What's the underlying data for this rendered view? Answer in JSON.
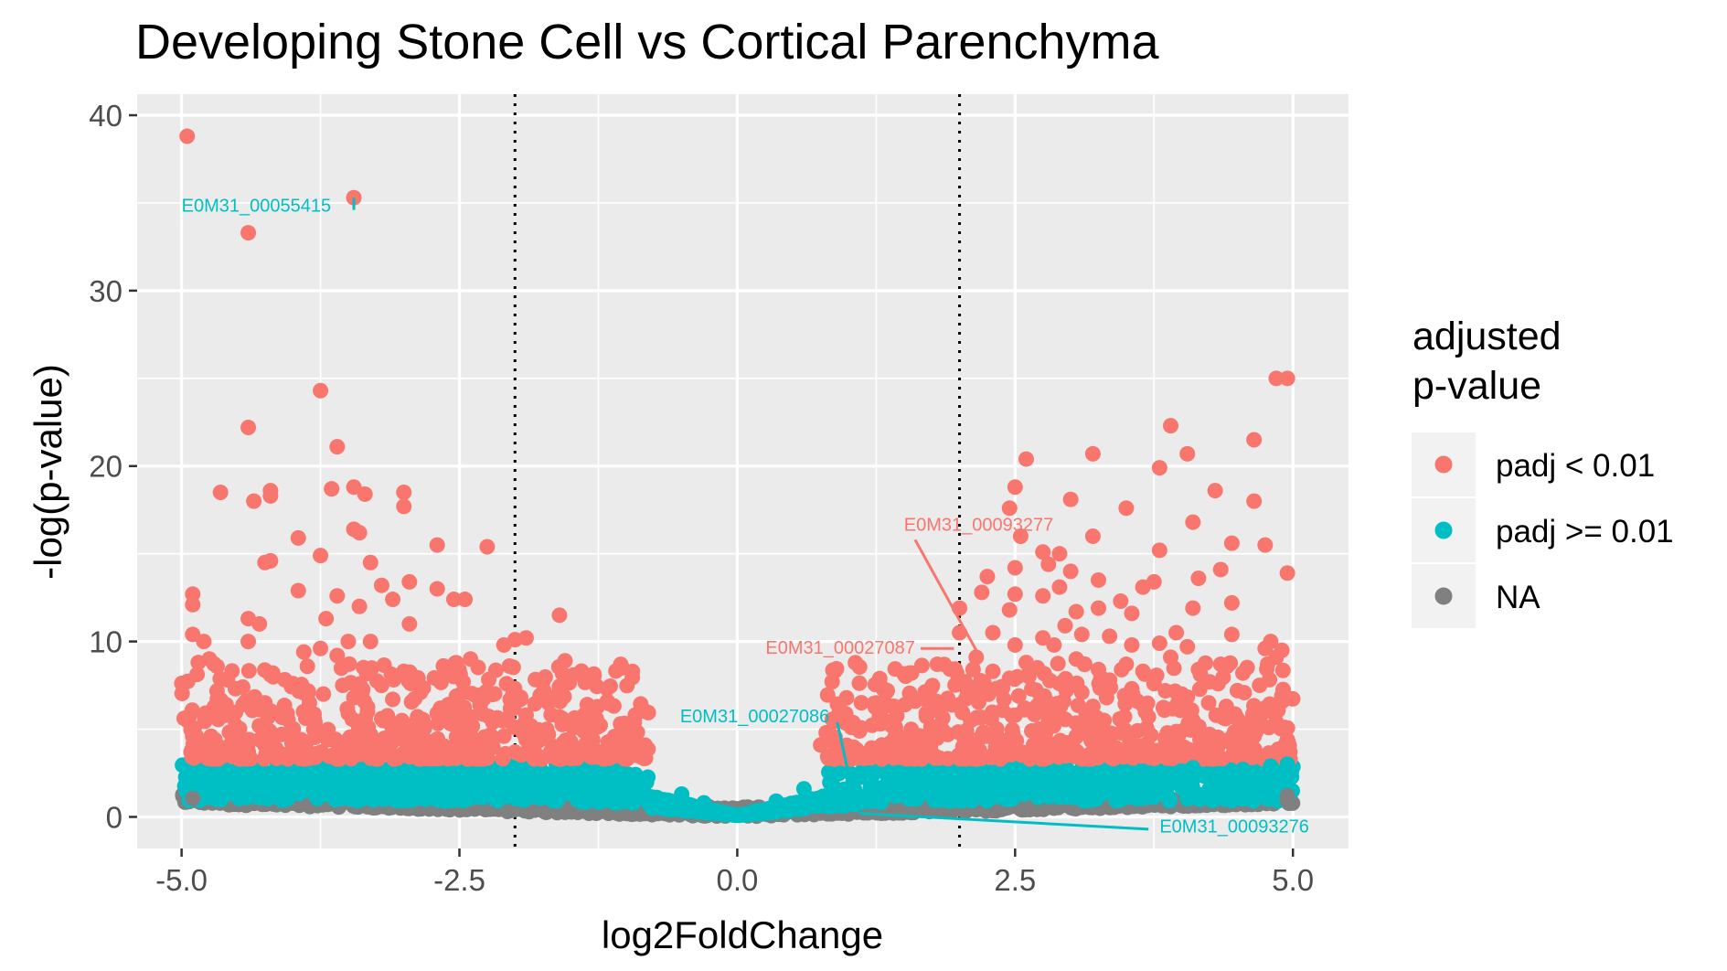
{
  "chart_data": {
    "type": "scatter",
    "title": "Developing Stone Cell vs Cortical Parenchyma",
    "xlabel": "log2FoldChange",
    "ylabel": "-log(p-value)",
    "xlim": [
      -5.4,
      5.5
    ],
    "ylim": [
      -1.8,
      41.2
    ],
    "x_ticks": [
      -5.0,
      -2.5,
      0.0,
      2.5,
      5.0
    ],
    "x_tick_labels": [
      "-5.0",
      "-2.5",
      "0.0",
      "2.5",
      "5.0"
    ],
    "y_ticks": [
      0,
      10,
      20,
      30,
      40
    ],
    "y_tick_labels": [
      "0",
      "10",
      "20",
      "30",
      "40"
    ],
    "vlines": [
      -2,
      2
    ],
    "grid": true,
    "legend": {
      "title_lines": [
        "adjusted",
        "p-value"
      ],
      "position": "right",
      "entries": [
        {
          "label": "padj < 0.01",
          "color": "#F8766D"
        },
        {
          "label": "padj >= 0.01",
          "color": "#00BFC4"
        },
        {
          "label": "NA",
          "color": "#808080"
        }
      ]
    },
    "series": [
      {
        "name": "padj < 0.01",
        "color": "#F8766D",
        "points": [
          [
            -4.95,
            38.8
          ],
          [
            -3.45,
            35.3
          ],
          [
            -4.4,
            33.3
          ],
          [
            -3.75,
            24.3
          ],
          [
            -4.4,
            22.2
          ],
          [
            -3.6,
            21.1
          ],
          [
            -4.65,
            18.5
          ],
          [
            -4.2,
            18.6
          ],
          [
            -4.2,
            18.3
          ],
          [
            -3.45,
            18.8
          ],
          [
            -3.35,
            18.4
          ],
          [
            -3.65,
            18.7
          ],
          [
            -4.35,
            18.0
          ],
          [
            -3.0,
            18.5
          ],
          [
            -3.0,
            17.7
          ],
          [
            -3.45,
            16.4
          ],
          [
            -3.4,
            16.2
          ],
          [
            -3.95,
            15.9
          ],
          [
            -2.7,
            15.5
          ],
          [
            -2.25,
            15.4
          ],
          [
            -3.75,
            14.9
          ],
          [
            -4.2,
            14.6
          ],
          [
            -4.25,
            14.5
          ],
          [
            -3.3,
            14.5
          ],
          [
            -3.2,
            13.2
          ],
          [
            -2.95,
            13.4
          ],
          [
            -2.7,
            13.0
          ],
          [
            -3.95,
            12.9
          ],
          [
            -3.6,
            12.6
          ],
          [
            -2.55,
            12.4
          ],
          [
            -2.45,
            12.4
          ],
          [
            -4.9,
            12.7
          ],
          [
            -4.9,
            12.1
          ],
          [
            -3.1,
            12.4
          ],
          [
            -1.6,
            11.5
          ],
          [
            -3.4,
            12.0
          ],
          [
            -2.95,
            11.0
          ],
          [
            -4.4,
            11.3
          ],
          [
            -4.3,
            11.0
          ],
          [
            -4.4,
            10.0
          ],
          [
            -3.7,
            11.3
          ],
          [
            -4.9,
            10.4
          ],
          [
            -4.8,
            10.0
          ],
          [
            -3.5,
            10.0
          ],
          [
            -3.3,
            10.0
          ],
          [
            -2.0,
            10.1
          ],
          [
            -1.9,
            10.2
          ],
          [
            -2.1,
            9.8
          ],
          [
            -4.75,
            9.0
          ],
          [
            -3.9,
            9.4
          ],
          [
            -3.75,
            9.6
          ],
          [
            -3.6,
            9.2
          ],
          [
            -4.85,
            8.8
          ],
          [
            -2.4,
            9.0
          ],
          [
            -1.55,
            8.9
          ],
          [
            -2.05,
            8.6
          ],
          [
            -1.75,
            7.7
          ],
          [
            -4.45,
            7.4
          ],
          [
            -4.2,
            8.1
          ],
          [
            -4.0,
            7.6
          ],
          [
            -3.55,
            7.5
          ],
          [
            -3.0,
            8.3
          ],
          [
            -2.55,
            8.0
          ],
          [
            -2.25,
            7.0
          ],
          [
            -4.6,
            6.4
          ],
          [
            -4.25,
            6.5
          ],
          [
            -3.85,
            6.5
          ],
          [
            -3.45,
            6.8
          ],
          [
            -3.1,
            6.7
          ],
          [
            -2.85,
            7.1
          ],
          [
            -2.6,
            6.4
          ],
          [
            -2.35,
            6.9
          ],
          [
            -1.95,
            6.7
          ],
          [
            -1.7,
            6.5
          ],
          [
            -1.35,
            6.4
          ],
          [
            -4.95,
            5.5
          ],
          [
            -4.6,
            5.8
          ],
          [
            -4.3,
            5.2
          ],
          [
            -4.05,
            5.9
          ],
          [
            -3.8,
            5.4
          ],
          [
            -3.5,
            5.9
          ],
          [
            -3.2,
            5.6
          ],
          [
            -2.9,
            5.3
          ],
          [
            -2.7,
            5.9
          ],
          [
            -2.45,
            5.7
          ],
          [
            -2.2,
            5.4
          ],
          [
            -1.9,
            5.8
          ],
          [
            -1.6,
            5.7
          ],
          [
            -1.3,
            5.4
          ],
          [
            -1.05,
            5.3
          ],
          [
            -4.9,
            4.6
          ],
          [
            -4.7,
            4.4
          ],
          [
            -4.5,
            4.8
          ],
          [
            -4.3,
            4.4
          ],
          [
            -4.1,
            4.7
          ],
          [
            -3.9,
            4.3
          ],
          [
            -3.7,
            4.8
          ],
          [
            -3.5,
            4.4
          ],
          [
            -3.3,
            4.7
          ],
          [
            -3.1,
            4.3
          ],
          [
            -2.9,
            4.8
          ],
          [
            -2.7,
            4.4
          ],
          [
            -2.5,
            4.7
          ],
          [
            -2.3,
            4.3
          ],
          [
            -2.1,
            4.6
          ],
          [
            -1.9,
            4.4
          ],
          [
            -1.7,
            4.7
          ],
          [
            -1.5,
            4.3
          ],
          [
            -1.3,
            4.4
          ],
          [
            -1.1,
            4.2
          ],
          [
            -0.95,
            4.1
          ],
          [
            -0.85,
            3.9
          ],
          [
            -4.8,
            3.6
          ],
          [
            -4.4,
            3.7
          ],
          [
            -4.0,
            3.6
          ],
          [
            -3.6,
            3.7
          ],
          [
            -3.2,
            3.6
          ],
          [
            -2.8,
            3.7
          ],
          [
            -2.4,
            3.6
          ],
          [
            -2.0,
            3.7
          ],
          [
            -1.6,
            3.6
          ],
          [
            -1.2,
            3.6
          ],
          [
            -0.9,
            3.5
          ],
          [
            4.95,
            25.0
          ],
          [
            4.85,
            25.0
          ],
          [
            3.9,
            22.3
          ],
          [
            4.65,
            21.5
          ],
          [
            4.05,
            20.7
          ],
          [
            3.2,
            20.7
          ],
          [
            2.6,
            20.4
          ],
          [
            3.8,
            19.9
          ],
          [
            2.5,
            18.8
          ],
          [
            4.3,
            18.6
          ],
          [
            4.65,
            18.0
          ],
          [
            3.0,
            18.1
          ],
          [
            2.45,
            17.6
          ],
          [
            3.5,
            17.6
          ],
          [
            4.1,
            16.8
          ],
          [
            3.2,
            16.0
          ],
          [
            2.55,
            16.0
          ],
          [
            4.45,
            15.6
          ],
          [
            4.75,
            15.5
          ],
          [
            3.8,
            15.2
          ],
          [
            2.75,
            15.1
          ],
          [
            2.9,
            15.0
          ],
          [
            2.8,
            14.4
          ],
          [
            2.5,
            14.2
          ],
          [
            3.0,
            14.0
          ],
          [
            4.35,
            14.1
          ],
          [
            4.95,
            13.9
          ],
          [
            2.25,
            13.7
          ],
          [
            3.25,
            13.5
          ],
          [
            3.75,
            13.4
          ],
          [
            3.65,
            13.1
          ],
          [
            4.15,
            13.6
          ],
          [
            2.9,
            13.1
          ],
          [
            2.5,
            12.7
          ],
          [
            2.75,
            12.6
          ],
          [
            2.2,
            12.8
          ],
          [
            3.45,
            12.3
          ],
          [
            2.45,
            11.8
          ],
          [
            3.05,
            11.7
          ],
          [
            3.55,
            11.6
          ],
          [
            2.95,
            10.9
          ],
          [
            4.45,
            12.2
          ],
          [
            4.1,
            11.9
          ],
          [
            2.0,
            11.9
          ],
          [
            3.25,
            11.9
          ],
          [
            2.3,
            10.5
          ],
          [
            2.75,
            10.2
          ],
          [
            3.1,
            10.4
          ],
          [
            3.35,
            10.3
          ],
          [
            3.95,
            10.5
          ],
          [
            4.45,
            10.4
          ],
          [
            4.8,
            10.0
          ],
          [
            4.9,
            9.5
          ],
          [
            2.0,
            10.5
          ],
          [
            2.5,
            9.8
          ],
          [
            2.85,
            9.8
          ],
          [
            3.55,
            9.8
          ],
          [
            3.8,
            9.9
          ],
          [
            4.05,
            9.7
          ],
          [
            4.75,
            9.6
          ],
          [
            2.15,
            9.1
          ],
          [
            2.6,
            8.8
          ],
          [
            3.05,
            9.0
          ],
          [
            3.5,
            8.7
          ],
          [
            3.9,
            9.1
          ],
          [
            4.35,
            8.7
          ],
          [
            4.85,
            9.1
          ],
          [
            1.8,
            8.7
          ],
          [
            2.3,
            8.3
          ],
          [
            2.7,
            8.5
          ],
          [
            3.25,
            8.4
          ],
          [
            3.65,
            8.3
          ],
          [
            4.15,
            8.4
          ],
          [
            4.55,
            8.2
          ],
          [
            1.55,
            8.2
          ],
          [
            2.05,
            7.7
          ],
          [
            2.45,
            7.9
          ],
          [
            2.9,
            7.6
          ],
          [
            3.35,
            7.8
          ],
          [
            3.75,
            7.6
          ],
          [
            4.25,
            7.7
          ],
          [
            4.7,
            7.5
          ],
          [
            1.35,
            7.2
          ],
          [
            1.75,
            7.4
          ],
          [
            2.15,
            7.1
          ],
          [
            2.65,
            7.3
          ],
          [
            3.1,
            7.1
          ],
          [
            3.55,
            7.3
          ],
          [
            4.0,
            7.0
          ],
          [
            4.5,
            7.2
          ],
          [
            4.9,
            6.9
          ],
          [
            1.25,
            6.5
          ],
          [
            1.6,
            6.6
          ],
          [
            2.0,
            6.4
          ],
          [
            2.4,
            6.7
          ],
          [
            2.8,
            6.5
          ],
          [
            3.2,
            6.3
          ],
          [
            3.6,
            6.6
          ],
          [
            4.0,
            6.4
          ],
          [
            4.4,
            6.3
          ],
          [
            4.75,
            6.2
          ],
          [
            0.95,
            5.8
          ],
          [
            1.3,
            5.6
          ],
          [
            1.7,
            5.9
          ],
          [
            2.1,
            5.5
          ],
          [
            2.5,
            5.8
          ],
          [
            2.9,
            5.6
          ],
          [
            3.3,
            5.5
          ],
          [
            3.7,
            5.7
          ],
          [
            4.1,
            5.5
          ],
          [
            4.5,
            5.6
          ],
          [
            4.85,
            5.4
          ],
          [
            0.8,
            4.8
          ],
          [
            1.1,
            4.9
          ],
          [
            1.45,
            4.6
          ],
          [
            1.85,
            4.8
          ],
          [
            2.25,
            4.6
          ],
          [
            2.65,
            4.9
          ],
          [
            3.05,
            4.6
          ],
          [
            3.45,
            4.8
          ],
          [
            3.85,
            4.5
          ],
          [
            4.25,
            4.7
          ],
          [
            4.65,
            4.6
          ],
          [
            4.95,
            4.4
          ],
          [
            0.75,
            4.1
          ],
          [
            1.0,
            4.0
          ],
          [
            1.3,
            4.1
          ],
          [
            1.7,
            3.9
          ],
          [
            2.1,
            4.1
          ],
          [
            2.5,
            3.8
          ],
          [
            2.9,
            4.0
          ],
          [
            3.3,
            3.8
          ],
          [
            3.7,
            3.9
          ],
          [
            4.1,
            3.7
          ],
          [
            4.5,
            3.8
          ],
          [
            4.85,
            3.7
          ]
        ]
      },
      {
        "name": "padj >= 0.01",
        "color": "#00BFC4",
        "points": [
          [
            4.95,
            3.0
          ],
          [
            4.8,
            2.9
          ],
          [
            4.55,
            2.7
          ],
          [
            4.1,
            2.8
          ],
          [
            3.65,
            2.6
          ],
          [
            -0.5,
            1.3
          ],
          [
            -0.3,
            0.8
          ],
          [
            0.35,
            0.9
          ],
          [
            0.6,
            1.6
          ]
        ]
      },
      {
        "name": "NA",
        "color": "#808080",
        "points": [
          [
            -4.9,
            1.05
          ],
          [
            4.95,
            1.2
          ],
          [
            4.95,
            0.9
          ]
        ]
      }
    ],
    "annotations": [
      {
        "label": "E0M31_00055415",
        "color": "#00BFC4",
        "x": -3.45,
        "y": 35.3
      },
      {
        "label": "E0M31_00093277",
        "color": "#F8766D",
        "x": 2.15,
        "y": 9.5
      },
      {
        "label": "E0M31_00027087",
        "color": "#F8766D",
        "x": 1.95,
        "y": 9.6
      },
      {
        "label": "E0M31_00027086",
        "color": "#00BFC4",
        "x": 1.0,
        "y": 2.5
      },
      {
        "label": "E0M31_00093276",
        "color": "#00BFC4",
        "x": 1.1,
        "y": 0.2
      }
    ]
  }
}
